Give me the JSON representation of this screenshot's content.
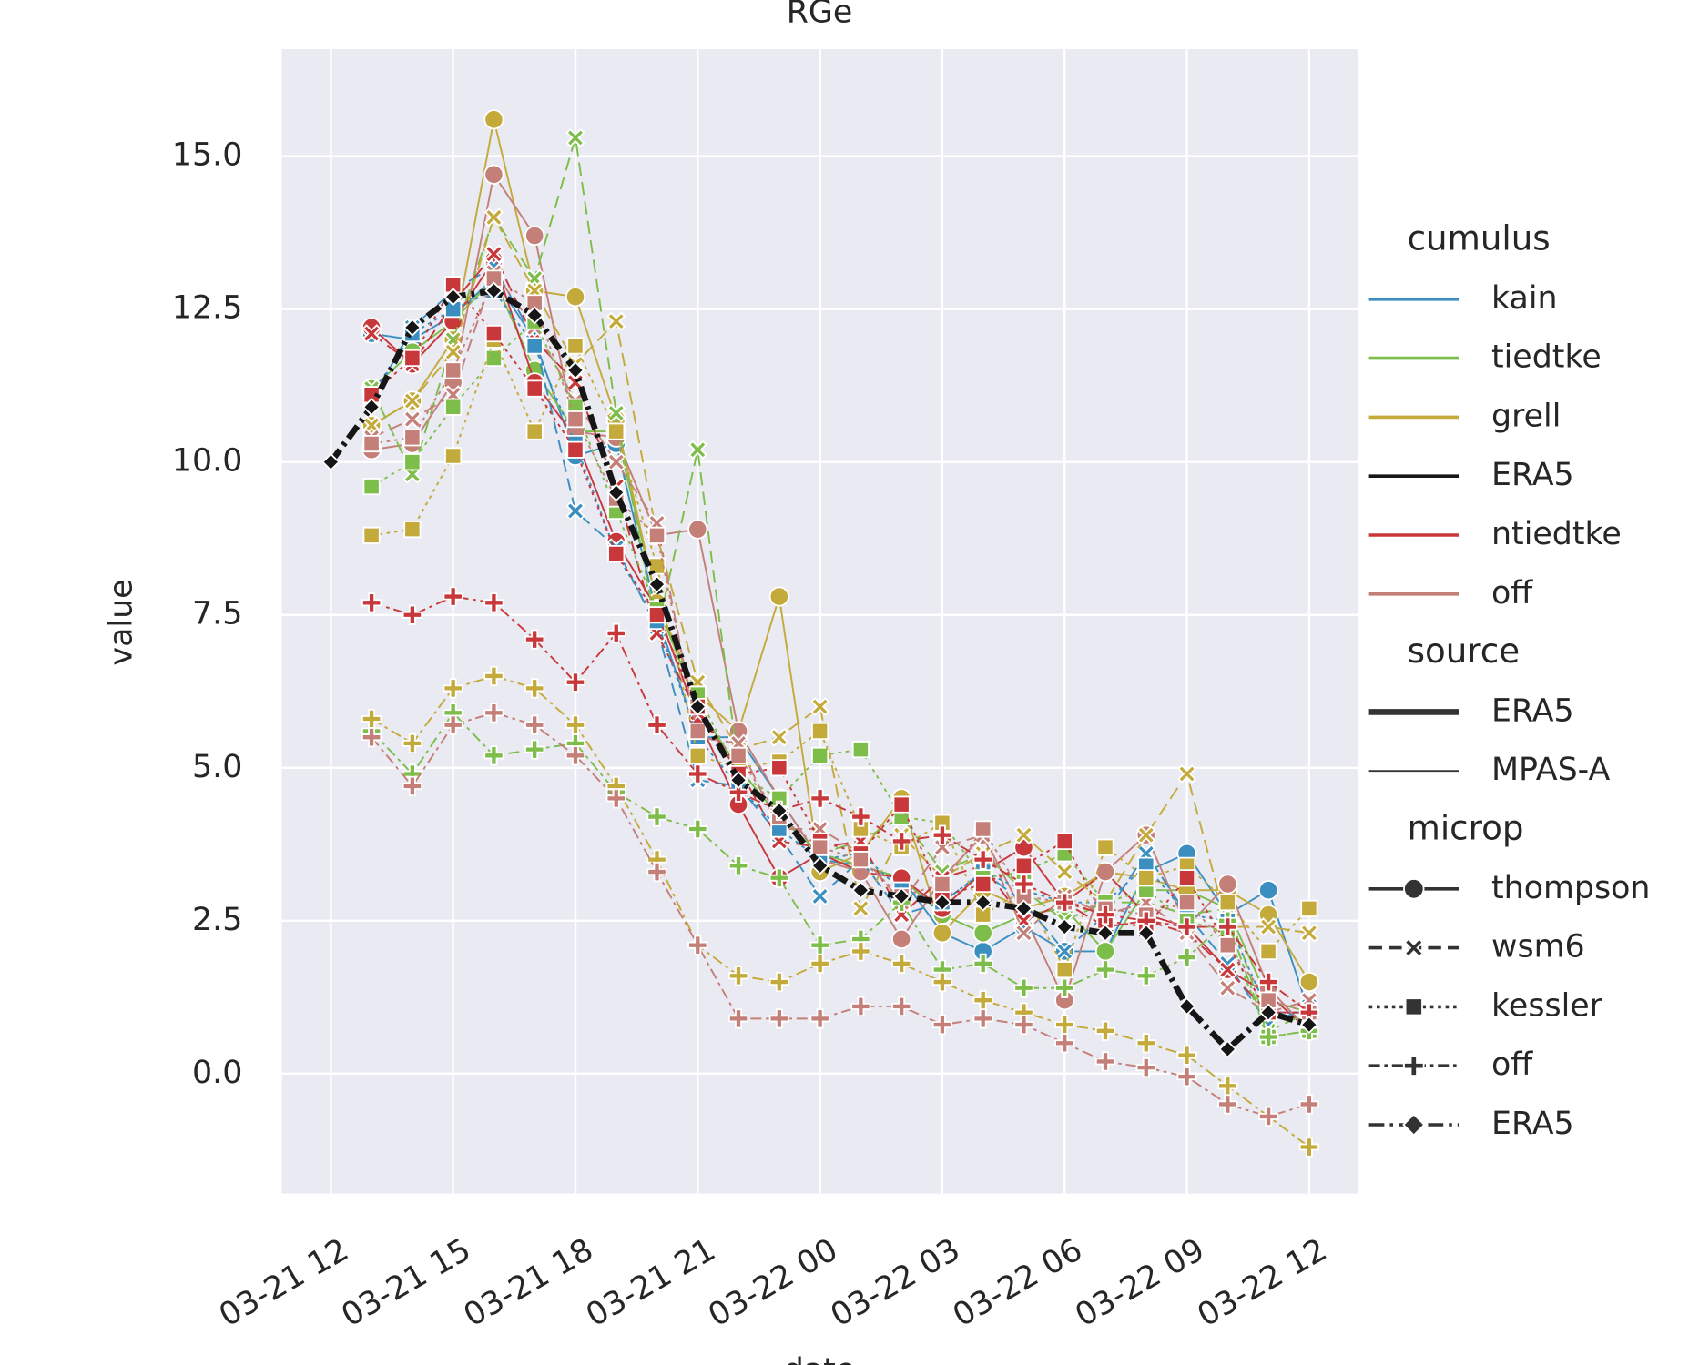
{
  "chart_data": {
    "type": "line",
    "title": "RGe",
    "xlabel": "date",
    "ylabel": "value",
    "x": [
      "03-21 12",
      "03-21 13",
      "03-21 14",
      "03-21 15",
      "03-21 16",
      "03-21 17",
      "03-21 18",
      "03-21 19",
      "03-21 20",
      "03-21 21",
      "03-21 22",
      "03-21 23",
      "03-22 00",
      "03-22 01",
      "03-22 02",
      "03-22 03",
      "03-22 04",
      "03-22 05",
      "03-22 06",
      "03-22 07",
      "03-22 08",
      "03-22 09",
      "03-22 10",
      "03-22 11",
      "03-22 12"
    ],
    "xticks": [
      "03-21 12",
      "03-21 15",
      "03-21 18",
      "03-21 21",
      "03-22 00",
      "03-22 03",
      "03-22 06",
      "03-22 09",
      "03-22 12"
    ],
    "ylim": [
      -1.96,
      16.75
    ],
    "yticks": [
      {
        "value": 0,
        "label": "0.0"
      },
      {
        "value": 2.5,
        "label": "2.5"
      },
      {
        "value": 5,
        "label": "5.0"
      },
      {
        "value": 7.5,
        "label": "7.5"
      },
      {
        "value": 10,
        "label": "10.0"
      },
      {
        "value": 12.5,
        "label": "12.5"
      },
      {
        "value": 15,
        "label": "15.0"
      }
    ],
    "grid": true,
    "background": "#eaeaf2",
    "legend_position": "right",
    "legend": [
      {
        "title": "cumulus",
        "items": [
          {
            "label": "kain",
            "color": "#3a8fc0"
          },
          {
            "label": "tiedtke",
            "color": "#7dbd4a"
          },
          {
            "label": "grell",
            "color": "#c4aa3a"
          },
          {
            "label": "ERA5",
            "color": "#161616"
          },
          {
            "label": "ntiedtke",
            "color": "#c8373a"
          },
          {
            "label": "off",
            "color": "#c47f78"
          }
        ]
      },
      {
        "title": "source",
        "items": [
          {
            "label": "ERA5"
          },
          {
            "label": "MPAS-A"
          }
        ]
      },
      {
        "title": "microp",
        "items": [
          {
            "label": "thompson"
          },
          {
            "label": "wsm6"
          },
          {
            "label": "kessler"
          },
          {
            "label": "off"
          },
          {
            "label": "ERA5"
          }
        ]
      }
    ],
    "series": [
      {
        "cumulus": "ERA5",
        "microp": "ERA5",
        "source": "ERA5",
        "values": [
          10.0,
          10.9,
          12.2,
          12.7,
          12.8,
          12.4,
          11.5,
          9.5,
          8.0,
          6.0,
          4.8,
          4.3,
          3.4,
          3.0,
          2.9,
          2.8,
          2.8,
          2.7,
          2.4,
          2.3,
          2.3,
          1.1,
          0.4,
          1.0,
          0.8
        ]
      },
      {
        "cumulus": "kain",
        "microp": "thompson",
        "source": "MPAS-A",
        "values": [
          null,
          12.1,
          12.0,
          12.4,
          13.0,
          12.0,
          10.1,
          10.3,
          7.5,
          5.5,
          5.5,
          4.5,
          3.5,
          3.4,
          3.2,
          2.3,
          2.0,
          2.4,
          2.0,
          2.0,
          3.3,
          3.6,
          2.6,
          3.0,
          1.0
        ]
      },
      {
        "cumulus": "tiedtke",
        "microp": "thompson",
        "source": "MPAS-A",
        "values": [
          null,
          11.2,
          11.8,
          12.3,
          13.0,
          11.5,
          10.5,
          10.5,
          7.7,
          6.0,
          5.0,
          4.2,
          3.6,
          3.4,
          3.2,
          2.6,
          2.3,
          2.6,
          2.7,
          2.0,
          3.0,
          3.0,
          2.7,
          1.2,
          1.0
        ]
      },
      {
        "cumulus": "grell",
        "microp": "thompson",
        "source": "MPAS-A",
        "values": [
          null,
          10.6,
          11.0,
          12.0,
          15.6,
          12.8,
          12.7,
          10.7,
          7.7,
          6.2,
          5.6,
          7.8,
          3.3,
          3.6,
          4.5,
          2.3,
          3.0,
          2.7,
          2.9,
          3.3,
          3.2,
          3.0,
          3.0,
          2.6,
          1.5
        ]
      },
      {
        "cumulus": "ntiedtke",
        "microp": "thompson",
        "source": "MPAS-A",
        "values": [
          null,
          12.2,
          11.6,
          12.3,
          13.3,
          11.3,
          10.4,
          8.7,
          7.6,
          5.8,
          4.4,
          3.2,
          3.6,
          3.3,
          3.2,
          2.7,
          3.3,
          3.7,
          2.8,
          3.3,
          2.6,
          2.4,
          1.7,
          1.3,
          0.7
        ]
      },
      {
        "cumulus": "off",
        "microp": "thompson",
        "source": "MPAS-A",
        "values": [
          null,
          10.2,
          10.3,
          11.3,
          14.7,
          13.7,
          10.5,
          10.4,
          8.8,
          8.9,
          5.6,
          4.5,
          3.5,
          3.3,
          2.2,
          3.2,
          3.9,
          2.6,
          1.2,
          3.3,
          3.9,
          2.4,
          3.1,
          1.4,
          0.7
        ]
      },
      {
        "cumulus": "kain",
        "microp": "wsm6",
        "source": "MPAS-A",
        "values": [
          null,
          11.0,
          12.2,
          12.8,
          13.2,
          12.0,
          9.2,
          8.6,
          7.3,
          4.8,
          4.7,
          3.9,
          2.9,
          3.5,
          2.6,
          2.8,
          3.3,
          2.8,
          2.0,
          2.6,
          3.6,
          2.6,
          1.8,
          0.8,
          1.1
        ]
      },
      {
        "cumulus": "tiedtke",
        "microp": "wsm6",
        "source": "MPAS-A",
        "values": [
          null,
          11.2,
          9.8,
          12.0,
          14.0,
          13.0,
          15.3,
          10.8,
          7.2,
          10.2,
          5.0,
          4.2,
          3.6,
          3.8,
          4.2,
          3.3,
          3.6,
          3.0,
          2.5,
          2.8,
          2.8,
          2.6,
          2.7,
          0.7,
          1.0
        ]
      },
      {
        "cumulus": "grell",
        "microp": "wsm6",
        "source": "MPAS-A",
        "values": [
          null,
          10.6,
          11.0,
          11.8,
          14.0,
          12.8,
          11.6,
          12.3,
          8.8,
          6.4,
          5.3,
          5.5,
          6.0,
          2.7,
          3.9,
          3.2,
          3.6,
          3.9,
          3.3,
          2.8,
          3.9,
          4.9,
          2.4,
          2.4,
          2.3
        ]
      },
      {
        "cumulus": "ntiedtke",
        "microp": "wsm6",
        "source": "MPAS-A",
        "values": [
          null,
          12.1,
          11.6,
          12.6,
          13.4,
          12.0,
          11.3,
          9.6,
          7.2,
          5.9,
          5.0,
          3.8,
          3.7,
          3.8,
          2.6,
          3.2,
          3.4,
          2.5,
          2.8,
          2.4,
          2.5,
          2.3,
          1.7,
          1.0,
          1.0
        ]
      },
      {
        "cumulus": "off",
        "microp": "wsm6",
        "source": "MPAS-A",
        "values": [
          null,
          10.4,
          10.7,
          11.1,
          13.1,
          12.2,
          11.0,
          10.0,
          9.0,
          5.5,
          5.4,
          4.0,
          4.0,
          3.6,
          2.8,
          3.7,
          3.9,
          2.3,
          2.9,
          2.6,
          2.8,
          2.3,
          1.4,
          1.0,
          1.2
        ]
      },
      {
        "cumulus": "kain",
        "microp": "kessler",
        "source": "MPAS-A",
        "values": [
          null,
          11.1,
          12.1,
          12.5,
          12.8,
          11.9,
          10.3,
          8.5,
          7.4,
          5.5,
          4.7,
          4.0,
          3.5,
          3.6,
          3.0,
          2.8,
          3.3,
          3.0,
          2.8,
          2.8,
          3.4,
          2.6,
          2.5,
          1.0,
          1.0
        ]
      },
      {
        "cumulus": "tiedtke",
        "microp": "kessler",
        "source": "MPAS-A",
        "values": [
          null,
          9.6,
          10.0,
          10.9,
          11.7,
          12.3,
          10.9,
          9.2,
          7.6,
          6.2,
          4.9,
          4.5,
          5.2,
          5.3,
          4.2,
          4.1,
          3.2,
          3.3,
          3.6,
          2.8,
          3.0,
          2.5,
          2.3,
          0.6,
          0.7
        ]
      },
      {
        "cumulus": "grell",
        "microp": "kessler",
        "source": "MPAS-A",
        "values": [
          null,
          8.8,
          8.9,
          10.1,
          12.0,
          10.5,
          11.9,
          10.5,
          8.3,
          5.2,
          5.0,
          5.1,
          5.6,
          4.0,
          3.7,
          4.1,
          2.6,
          3.0,
          1.7,
          3.7,
          3.2,
          3.4,
          2.8,
          2.0,
          2.7
        ]
      },
      {
        "cumulus": "ntiedtke",
        "microp": "kessler",
        "source": "MPAS-A",
        "values": [
          null,
          11.1,
          11.7,
          12.9,
          12.1,
          11.2,
          10.2,
          8.5,
          7.5,
          6.0,
          4.9,
          5.0,
          3.8,
          3.6,
          4.4,
          2.9,
          3.1,
          3.4,
          3.8,
          2.5,
          2.4,
          3.2,
          2.1,
          1.0,
          1.0
        ]
      },
      {
        "cumulus": "off",
        "microp": "kessler",
        "source": "MPAS-A",
        "values": [
          null,
          10.3,
          10.4,
          11.5,
          13.0,
          12.6,
          10.7,
          9.4,
          8.8,
          5.6,
          5.2,
          4.2,
          3.7,
          3.5,
          2.9,
          3.1,
          4.0,
          2.9,
          2.8,
          2.7,
          2.6,
          2.8,
          2.1,
          1.2,
          1.0
        ]
      },
      {
        "cumulus": "tiedtke",
        "microp": "off",
        "source": "MPAS-A",
        "values": [
          null,
          5.6,
          4.9,
          5.9,
          5.2,
          5.3,
          5.4,
          4.6,
          4.2,
          4.0,
          3.4,
          3.2,
          2.1,
          2.2,
          2.8,
          1.7,
          1.8,
          1.4,
          1.4,
          1.7,
          1.6,
          1.9,
          2.5,
          0.6,
          0.7
        ]
      },
      {
        "cumulus": "grell",
        "microp": "off",
        "source": "MPAS-A",
        "values": [
          null,
          5.8,
          5.4,
          6.3,
          6.5,
          6.3,
          5.7,
          4.7,
          3.5,
          2.1,
          1.6,
          1.5,
          1.8,
          2.0,
          1.8,
          1.5,
          1.2,
          1.0,
          0.8,
          0.7,
          0.5,
          0.3,
          -0.2,
          -0.7,
          -1.2
        ]
      },
      {
        "cumulus": "ntiedtke",
        "microp": "off",
        "source": "MPAS-A",
        "values": [
          null,
          7.7,
          7.5,
          7.8,
          7.7,
          7.1,
          6.4,
          7.2,
          5.7,
          4.9,
          4.6,
          4.3,
          4.5,
          4.2,
          3.8,
          3.9,
          3.5,
          3.1,
          2.8,
          2.6,
          2.5,
          2.4,
          2.4,
          1.5,
          1.0
        ]
      },
      {
        "cumulus": "off",
        "microp": "off",
        "source": "MPAS-A",
        "values": [
          null,
          5.5,
          4.7,
          5.7,
          5.9,
          5.7,
          5.2,
          4.5,
          3.3,
          2.1,
          0.9,
          0.9,
          0.9,
          1.1,
          1.1,
          0.8,
          0.9,
          0.8,
          0.5,
          0.2,
          0.1,
          -0.05,
          -0.5,
          -0.7,
          -0.5
        ]
      }
    ]
  }
}
